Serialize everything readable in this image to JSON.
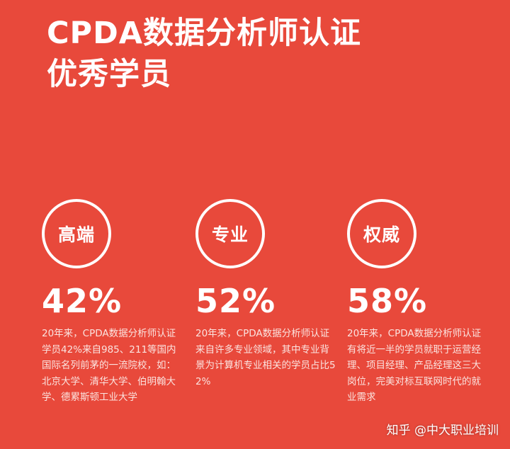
{
  "title": {
    "line1": "CPDA数据分析师认证",
    "line2": "优秀学员"
  },
  "stats": [
    {
      "label": "高端",
      "percent": "42%",
      "description": "20年来，CPDA数据分析师认证学员42%来自985、211等国内国际名列前茅的一流院校，如：北京大学、清华大学、伯明翰大学、德累斯顿工业大学"
    },
    {
      "label": "专业",
      "percent": "52%",
      "description": "20年来，CPDA数据分析师认证来自许多专业领域，其中专业背景为计算机专业相关的学员占比52%"
    },
    {
      "label": "权威",
      "percent": "58%",
      "description": "20年来，CPDA数据分析师认证有将近一半的学员就职于运营经理、项目经理、产品经理这三大岗位，完美对标互联网时代的就业需求"
    }
  ],
  "watermark": "知乎 @中大职业培训",
  "colors": {
    "background": "#e8493b",
    "text": "#ffffff"
  }
}
